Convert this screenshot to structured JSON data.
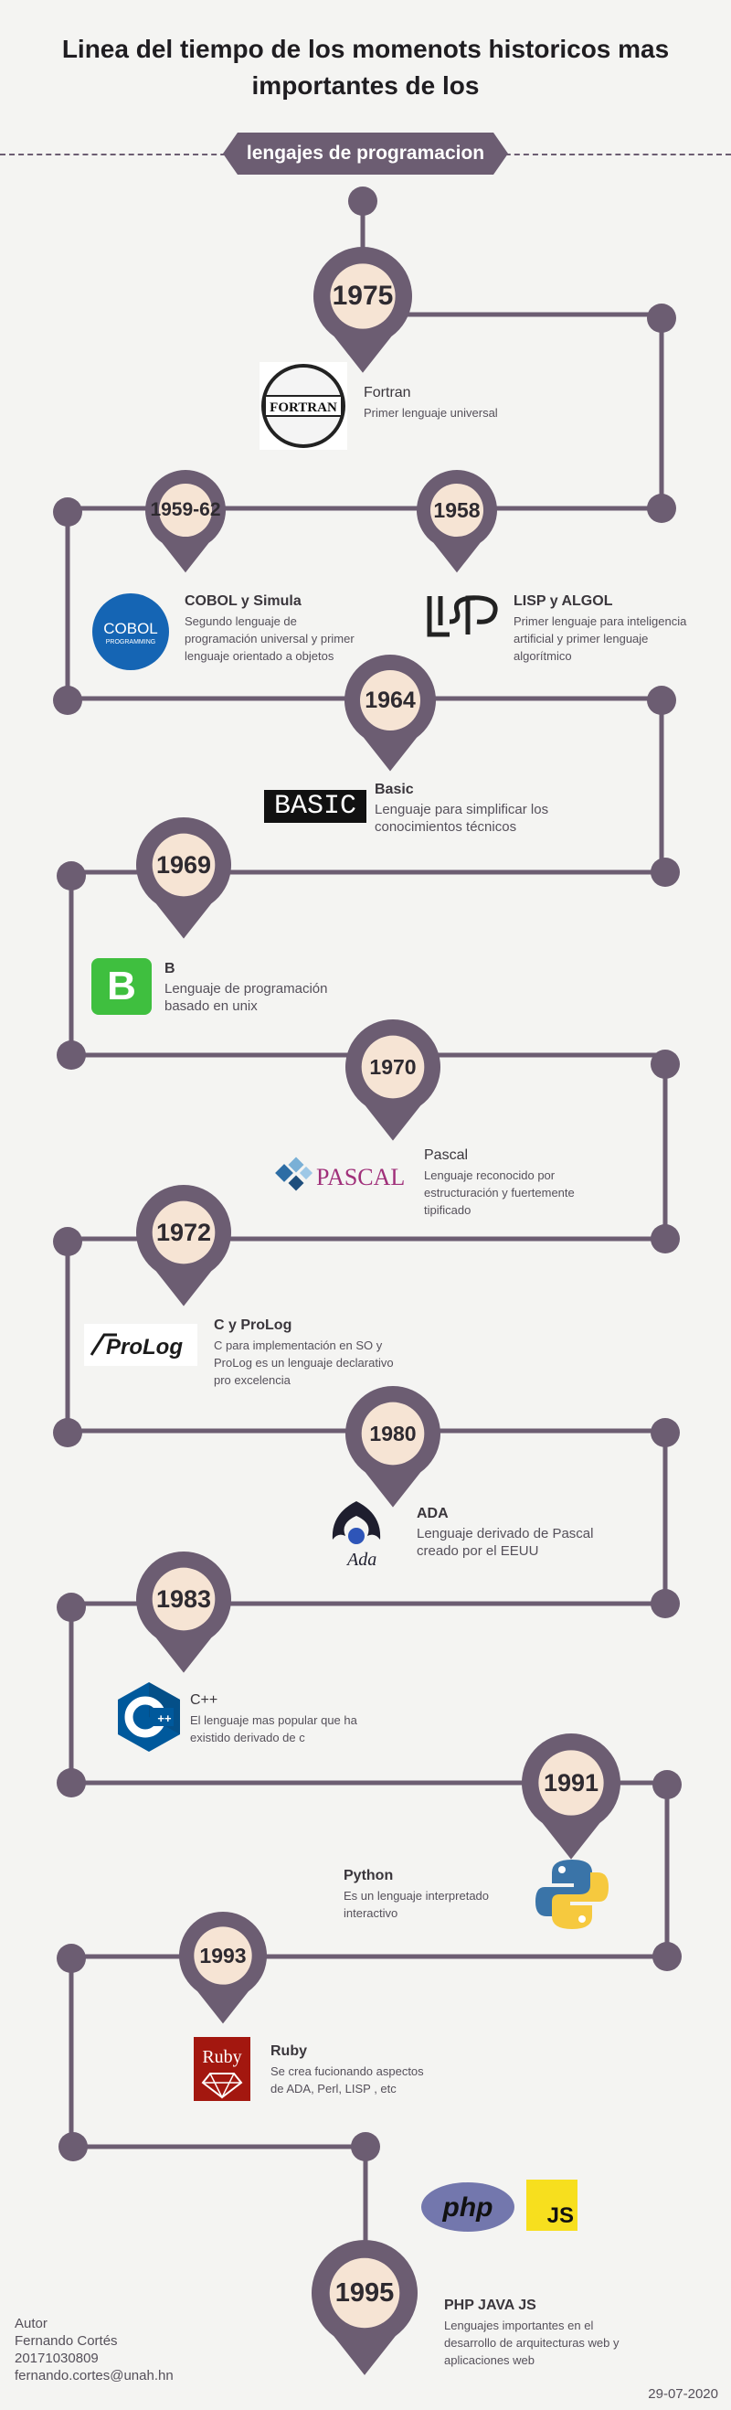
{
  "title": {
    "line1": "Linea del tiempo de los momenots historicos mas",
    "line2": "importantes de los",
    "ribbon": "lengajes de programacion"
  },
  "years": [
    "1975",
    "1959-62",
    "1958",
    "1964",
    "1969",
    "1970",
    "1972",
    "1980",
    "1983",
    "1991",
    "1993",
    "1995"
  ],
  "entries": [
    {
      "name": "Fortran",
      "desc": "Primer lenguaje universal"
    },
    {
      "name": "COBOL y Simula",
      "desc": "Segundo lenguaje de programación universal y primer lenguaje orientado a objetos"
    },
    {
      "name": "LISP y ALGOL",
      "desc": "Primer lenguaje para inteligencia artificial y primer lenguaje algorítmico"
    },
    {
      "name": "Basic",
      "desc": "Lenguaje para simplificar los conocimientos técnicos"
    },
    {
      "name": "B",
      "desc": "Lenguaje de programación basado en unix"
    },
    {
      "name": "Pascal",
      "desc": "Lenguaje reconocido por estructuración y fuertemente tipificado"
    },
    {
      "name": "C y ProLog",
      "desc": "C para implementación en SO y ProLog es un lenguaje declarativo pro excelencia"
    },
    {
      "name": "ADA",
      "desc": "Lenguaje derivado de Pascal creado por el EEUU"
    },
    {
      "name": "C++",
      "desc": "El lenguaje mas popular que ha existido derivado de c"
    },
    {
      "name": "Python",
      "desc": "Es un lenguaje interpretado interactivo"
    },
    {
      "name": "Ruby",
      "desc": "Se crea fucionando aspectos de ADA, Perl, LISP , etc"
    },
    {
      "name": "PHP JAVA JS",
      "desc": "Lenguajes importantes en el desarrollo de arquitecturas web y aplicaciones web"
    }
  ],
  "logos": {
    "fortran": "FORTRAN",
    "cobol_1": "COBOL",
    "cobol_2": "PROGRAMMING",
    "lisp": "LISP",
    "basic": "BASIC",
    "b": "B",
    "pascal": "PASCAL",
    "prolog": "ProLog",
    "ada": "Ada",
    "cpp": "C++",
    "ruby": "Ruby",
    "php": "php",
    "js": "JS"
  },
  "footer": {
    "role": "Autor",
    "author": "Fernando Cortés",
    "id": "20171030809",
    "email": "fernando.cortes@unah.hn",
    "date": "29-07-2020"
  },
  "colors": {
    "accent": "#6c5d72",
    "pin_inner": "#f6e4d4",
    "background": "#f4f4f2"
  }
}
